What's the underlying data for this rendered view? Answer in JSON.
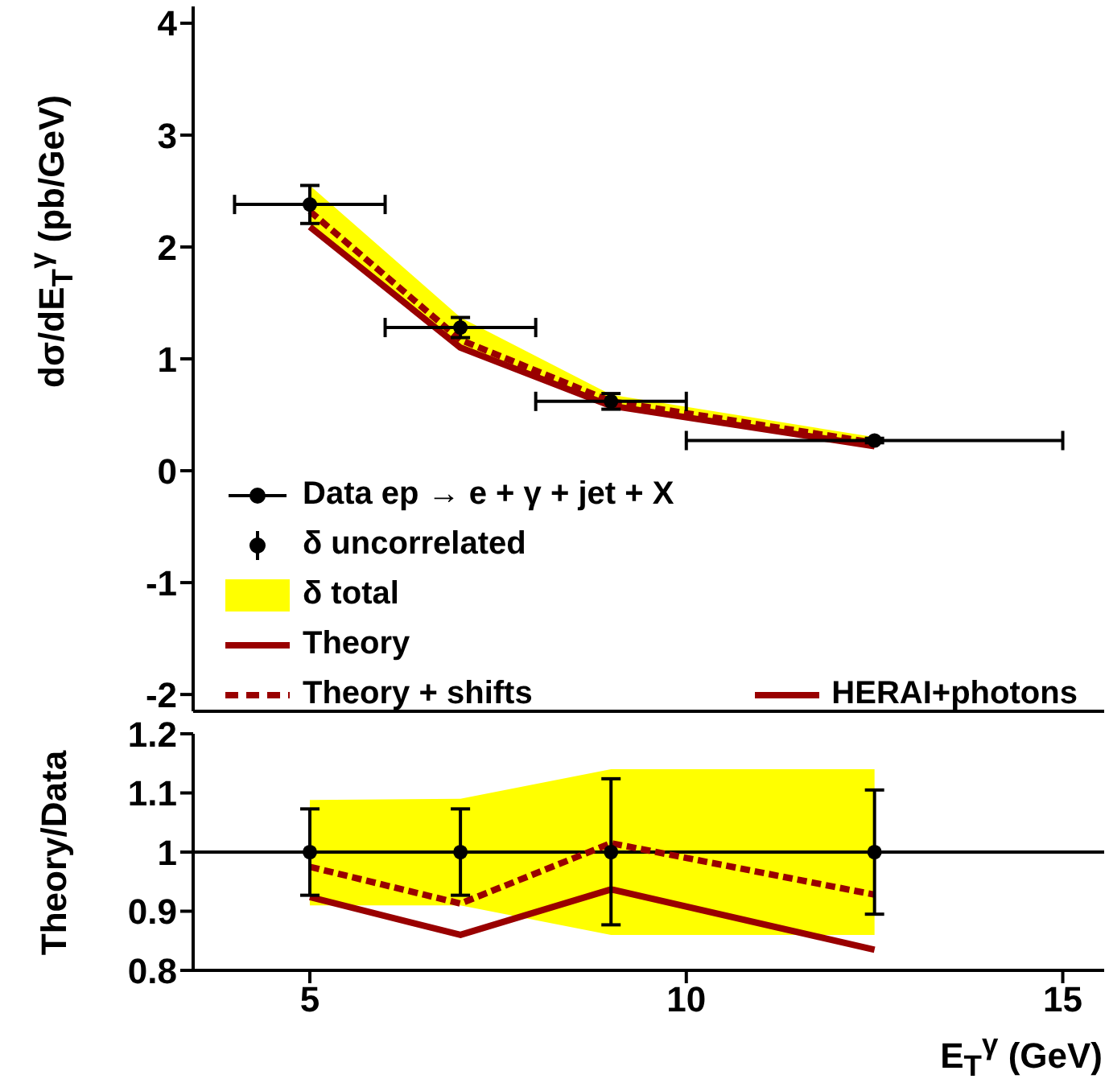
{
  "chart_data": [
    {
      "type": "line",
      "ylabel": "dσ/dE$_{T}$$^{γ}$ (pb/GeV)",
      "x": [
        5,
        7,
        9,
        12.5
      ],
      "xlim": [
        3.45,
        15.55
      ],
      "xticks": [
        5,
        10,
        15
      ],
      "ylim": [
        -2.15,
        4.15
      ],
      "yticks": [
        -2,
        -1,
        0,
        1,
        2,
        3,
        4
      ],
      "tick_labels": "y",
      "grid": false,
      "legend": "bottom left",
      "annotations": [
        "δ uncorrelated",
        "δ total",
        "HERAI+photons"
      ],
      "series": [
        {
          "name": "Data ep → e + γ + jet + X",
          "type": "scatter",
          "color": "#000000",
          "marker": "circle",
          "values": [
            2.38,
            1.28,
            0.62,
            0.27
          ],
          "errors": [
            0.17,
            0.09,
            0.07,
            0.02
          ],
          "xerrors": [
            [
              4,
              6
            ],
            [
              6,
              8
            ],
            [
              8,
              10
            ],
            [
              10,
              15
            ]
          ],
          "lower": [
            2.2,
            1.12,
            0.56,
            0.23
          ],
          "upper": [
            2.55,
            1.37,
            0.68,
            0.3
          ]
        },
        {
          "name": "Theory",
          "type": "line",
          "color": "#990000",
          "line_style": "solid",
          "values": [
            2.18,
            1.1,
            0.58,
            0.22
          ]
        },
        {
          "name": "Theory + shifts",
          "type": "line",
          "color": "#990000",
          "line_style": "dashed",
          "values": [
            2.32,
            1.17,
            0.62,
            0.25
          ]
        }
      ]
    },
    {
      "type": "line",
      "xlabel": "E$_{T}$$^{γ}$ (GeV)",
      "ylabel": "Theory/Data",
      "x": [
        5,
        7,
        9,
        12.5
      ],
      "xlim": [
        3.45,
        15.55
      ],
      "xticks": [
        5,
        10,
        15
      ],
      "ylim": [
        0.8,
        1.2
      ],
      "yticks": [
        0.8,
        0.9,
        1,
        1.1,
        1.2
      ],
      "grid": false,
      "legend": false,
      "ref_lines": [
        {
          "axis": "y",
          "value": 1,
          "color": "#000000"
        }
      ],
      "series": [
        {
          "type": "line",
          "color": "#990000",
          "line_style": "solid",
          "values": [
            0.924,
            0.86,
            0.937,
            0.835
          ]
        },
        {
          "type": "line",
          "color": "#990000",
          "line_style": "dashed",
          "values": [
            0.975,
            0.913,
            1.015,
            0.928
          ]
        },
        {
          "type": "scatter",
          "color": "#000000",
          "marker": "circle",
          "values": [
            1,
            1,
            1,
            1
          ],
          "errors": [
            [
              0.927,
              1.073
            ],
            [
              0.927,
              1.073
            ],
            [
              0.877,
              1.124
            ],
            [
              0.895,
              1.105
            ]
          ],
          "lower": [
            0.91,
            0.91,
            0.86,
            0.86
          ],
          "upper": [
            1.088,
            1.09,
            1.14,
            1.14
          ]
        }
      ]
    }
  ]
}
